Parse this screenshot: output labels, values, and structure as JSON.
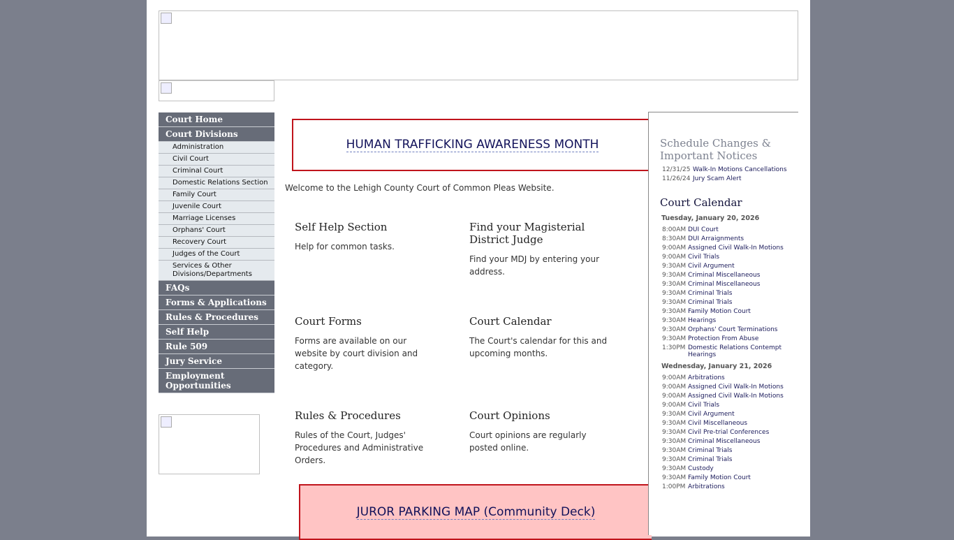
{
  "nav": {
    "main_top": [
      "Court Home",
      "Court Divisions"
    ],
    "divisions": [
      "Administration",
      "Civil Court",
      "Criminal Court",
      "Domestic Relations Section",
      "Family Court",
      "Juvenile Court",
      "Marriage Licenses",
      "Orphans' Court",
      "Recovery Court",
      "Judges of the Court",
      "Services & Other Divisions/Departments"
    ],
    "main_bottom": [
      "FAQs",
      "Forms & Applications",
      "Rules & Procedures",
      "Self Help",
      "Rule 509",
      "Jury Service",
      "Employment Opportunities"
    ]
  },
  "main": {
    "banner_top": "HUMAN TRAFFICKING AWARENESS MONTH",
    "welcome": "Welcome to the Lehigh County Court of Common Pleas Website.",
    "tiles": [
      {
        "title": "Self Help Section",
        "text": "Help for common tasks."
      },
      {
        "title": "Find your Magisterial District Judge",
        "text": "Find your MDJ by entering your address."
      },
      {
        "title": "Court Forms",
        "text": "Forms are available on our website by court division and category."
      },
      {
        "title": "Court Calendar",
        "text": "The Court's calendar for this and upcoming months."
      },
      {
        "title": "Rules & Procedures",
        "text": "Rules of the Court, Judges' Procedures and Administrative Orders."
      },
      {
        "title": "Court Opinions",
        "text": "Court opinions are regularly posted online."
      }
    ],
    "banner_bottom": "JUROR PARKING MAP (Community Deck)"
  },
  "side": {
    "notices_title": "Schedule Changes & Important Notices",
    "notices": [
      {
        "date": "12/31/25",
        "label": "Walk-In Motions Cancellations"
      },
      {
        "date": "11/26/24",
        "label": "Jury Scam Alert"
      }
    ],
    "calendar_title": "Court Calendar",
    "days": [
      {
        "date": "Tuesday, January 20, 2026",
        "events": [
          [
            "8:00AM",
            "DUI Court"
          ],
          [
            "8:30AM",
            "DUI Arraignments"
          ],
          [
            "9:00AM",
            "Assigned Civil Walk-In Motions"
          ],
          [
            "9:00AM",
            "Civil Trials"
          ],
          [
            "9:30AM",
            "Civil Argument"
          ],
          [
            "9:30AM",
            "Criminal Miscellaneous"
          ],
          [
            "9:30AM",
            "Criminal Miscellaneous"
          ],
          [
            "9:30AM",
            "Criminal Trials"
          ],
          [
            "9:30AM",
            "Criminal Trials"
          ],
          [
            "9:30AM",
            "Family Motion Court"
          ],
          [
            "9:30AM",
            "Hearings"
          ],
          [
            "9:30AM",
            "Orphans' Court Terminations"
          ],
          [
            "9:30AM",
            "Protection From Abuse"
          ],
          [
            "1:30PM",
            "Domestic Relations Contempt Hearings"
          ]
        ]
      },
      {
        "date": "Wednesday, January 21, 2026",
        "events": [
          [
            "9:00AM",
            "Arbitrations"
          ],
          [
            "9:00AM",
            "Assigned Civil Walk-In Motions"
          ],
          [
            "9:00AM",
            "Assigned Civil Walk-In Motions"
          ],
          [
            "9:00AM",
            "Civil Trials"
          ],
          [
            "9:30AM",
            "Civil Argument"
          ],
          [
            "9:30AM",
            "Civil Miscellaneous"
          ],
          [
            "9:30AM",
            "Civil Pre-trial Conferences"
          ],
          [
            "9:30AM",
            "Criminal Miscellaneous"
          ],
          [
            "9:30AM",
            "Criminal Trials"
          ],
          [
            "9:30AM",
            "Criminal Trials"
          ],
          [
            "9:30AM",
            "Custody"
          ],
          [
            "9:30AM",
            "Family Motion Court"
          ],
          [
            "1:00PM",
            "Arbitrations"
          ]
        ]
      }
    ]
  },
  "colors": {
    "nav": "#676c78",
    "subnav": "#e5eaee",
    "banner_border": "#c0141c",
    "parking_bg": "#ffc4c4"
  }
}
